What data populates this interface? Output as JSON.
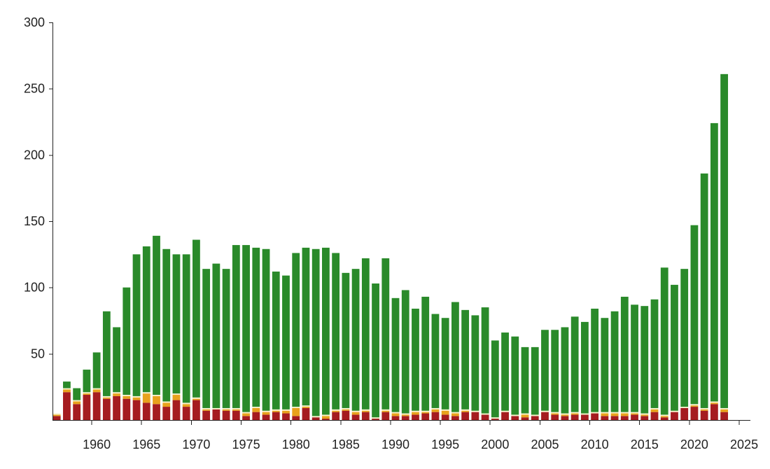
{
  "chart_data": {
    "type": "bar",
    "stacked": true,
    "title": "",
    "xlabel": "",
    "ylabel": "",
    "ylim": [
      0,
      300
    ],
    "y_ticks": [
      "50",
      "100",
      "150",
      "200",
      "250",
      "300"
    ],
    "x_ticks": [
      "1960",
      "1965",
      "1970",
      "1975",
      "1980",
      "1985",
      "1990",
      "1995",
      "2000",
      "2005",
      "2010",
      "2015",
      "2020",
      "2025"
    ],
    "grid": false,
    "legend": "none",
    "categories": [
      1956,
      1957,
      1958,
      1959,
      1960,
      1961,
      1962,
      1963,
      1964,
      1965,
      1966,
      1967,
      1968,
      1969,
      1970,
      1971,
      1972,
      1973,
      1974,
      1975,
      1976,
      1977,
      1978,
      1979,
      1980,
      1981,
      1982,
      1983,
      1984,
      1985,
      1986,
      1987,
      1988,
      1989,
      1990,
      1991,
      1992,
      1993,
      1994,
      1995,
      1996,
      1997,
      1998,
      1999,
      2000,
      2001,
      2002,
      2003,
      2004,
      2005,
      2006,
      2007,
      2008,
      2009,
      2010,
      2011,
      2012,
      2013,
      2014,
      2015,
      2016,
      2017,
      2018,
      2019,
      2020,
      2021,
      2022,
      2023
    ],
    "series": [
      {
        "color": "#a51c20",
        "values": [
          3,
          21,
          12,
          19,
          21,
          16,
          18,
          16,
          15,
          13,
          12,
          10,
          15,
          10,
          15,
          7,
          8,
          7,
          7,
          3,
          6,
          4,
          6,
          5,
          3,
          9,
          2,
          1,
          6,
          7,
          4,
          6,
          1,
          6,
          3,
          3,
          4,
          5,
          6,
          4,
          3,
          6,
          6,
          4,
          1,
          6,
          3,
          2,
          3,
          6,
          4,
          3,
          4,
          4,
          5,
          3,
          3,
          3,
          4,
          3,
          6,
          2,
          6,
          9,
          10,
          7,
          12,
          6
        ]
      },
      {
        "color": "#e8a21c",
        "values": [
          1,
          2,
          2,
          1,
          2,
          1,
          2,
          2,
          2,
          7,
          6,
          3,
          4,
          2,
          1,
          1,
          0,
          1,
          1,
          2,
          3,
          2,
          1,
          2,
          6,
          1,
          0,
          2,
          1,
          1,
          2,
          1,
          0,
          1,
          2,
          1,
          2,
          1,
          2,
          3,
          2,
          1,
          0,
          0,
          0,
          0,
          0,
          2,
          0,
          0,
          1,
          1,
          1,
          0,
          0,
          2,
          2,
          2,
          1,
          1,
          2,
          1,
          0,
          0,
          1,
          1,
          1,
          2
        ]
      },
      {
        "color": "#f6f1c8",
        "values": [
          1,
          1,
          1,
          1,
          1,
          1,
          1,
          1,
          1,
          1,
          1,
          1,
          1,
          1,
          1,
          1,
          1,
          1,
          1,
          1,
          1,
          1,
          1,
          1,
          1,
          1,
          1,
          1,
          1,
          1,
          1,
          1,
          1,
          1,
          1,
          1,
          1,
          1,
          1,
          1,
          1,
          1,
          1,
          1,
          1,
          1,
          1,
          1,
          1,
          1,
          1,
          1,
          1,
          1,
          1,
          1,
          1,
          1,
          1,
          1,
          1,
          1,
          1,
          1,
          1,
          1,
          1,
          1
        ]
      },
      {
        "color": "#2a8a2a",
        "values": [
          0,
          5,
          9,
          17,
          27,
          64,
          49,
          81,
          107,
          110,
          120,
          115,
          105,
          112,
          119,
          105,
          109,
          105,
          123,
          126,
          120,
          122,
          104,
          101,
          116,
          119,
          126,
          126,
          118,
          102,
          107,
          114,
          101,
          114,
          86,
          93,
          77,
          86,
          71,
          69,
          83,
          75,
          72,
          80,
          58,
          59,
          59,
          50,
          51,
          61,
          62,
          65,
          72,
          69,
          78,
          71,
          76,
          87,
          81,
          81,
          82,
          111,
          95,
          104,
          135,
          177,
          210,
          252
        ]
      }
    ]
  }
}
